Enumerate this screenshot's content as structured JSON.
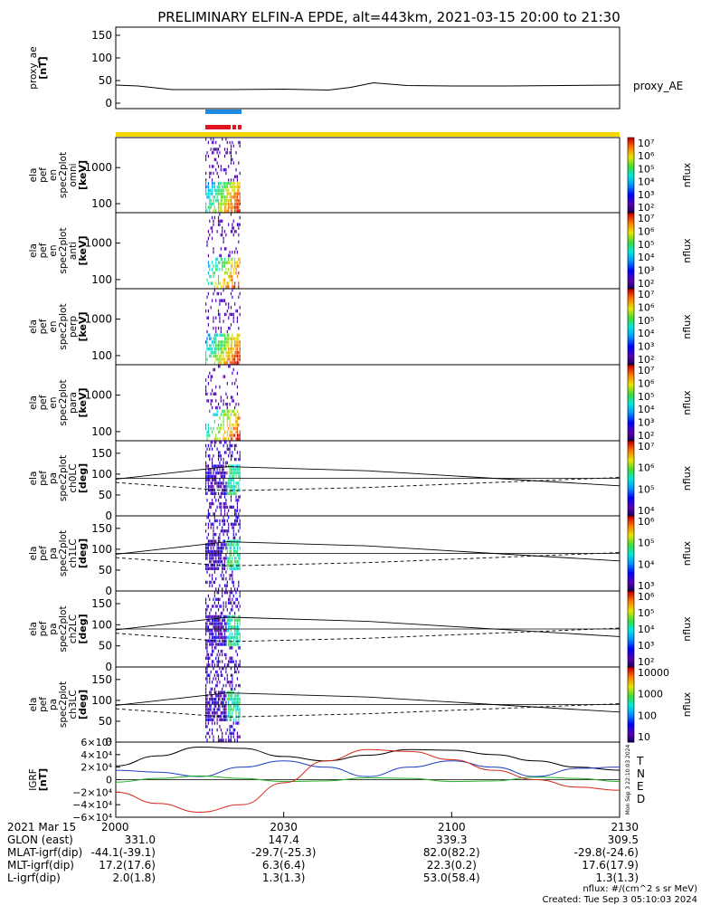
{
  "title": "PRELIMINARY ELFIN-A EPDE, alt=443km, 2021-03-15 20:00 to 21:30",
  "colors": {
    "bar_blue": "#1e88e5",
    "bar_red": "#e0141e",
    "bar_yellow": "#f5d800",
    "series_T": "#000000",
    "series_N": "#1f3fbf",
    "series_E": "#22b022",
    "series_D": "#d42a1a"
  },
  "chart_data": [
    {
      "type": "line",
      "panel": "proxy_ae",
      "ylabel": [
        "proxy_ae",
        "[nT]"
      ],
      "yticks": [
        "150",
        "100",
        "50",
        "0"
      ],
      "ylim": [
        0,
        160
      ],
      "legend": "proxy_AE",
      "x": [
        0,
        4,
        10,
        20,
        30,
        38,
        42,
        46,
        52,
        60,
        70,
        80,
        90
      ],
      "values": [
        40,
        38,
        30,
        30,
        31,
        29,
        35,
        45,
        39,
        38,
        38,
        39,
        40
      ]
    },
    {
      "type": "heatmap",
      "panel": "omni",
      "ylabel": [
        "ela",
        "pef",
        "en",
        "spec2plot",
        "omni",
        "[keV]"
      ],
      "yticks": [
        "1000",
        "100"
      ],
      "zlabel": "nflux",
      "zticks": [
        "10⁷",
        "10⁶",
        "10⁵",
        "10⁴",
        "10³",
        "10²"
      ]
    },
    {
      "type": "heatmap",
      "panel": "anti",
      "ylabel": [
        "ela",
        "pef",
        "en",
        "spec2plot",
        "anti",
        "[keV]"
      ],
      "yticks": [
        "1000",
        "100"
      ],
      "zlabel": "nflux",
      "zticks": [
        "10⁷",
        "10⁶",
        "10⁵",
        "10⁴",
        "10³",
        "10²"
      ]
    },
    {
      "type": "heatmap",
      "panel": "perp",
      "ylabel": [
        "ela",
        "pef",
        "en",
        "spec2plot",
        "perp",
        "[keV]"
      ],
      "yticks": [
        "1000",
        "100"
      ],
      "zlabel": "nflux",
      "zticks": [
        "10⁷",
        "10⁶",
        "10⁵",
        "10⁴",
        "10³",
        "10²"
      ]
    },
    {
      "type": "heatmap",
      "panel": "para",
      "ylabel": [
        "ela",
        "pef",
        "en",
        "spec2plot",
        "para",
        "[keV]"
      ],
      "yticks": [
        "1000",
        "100"
      ],
      "zlabel": "nflux",
      "zticks": [
        "10⁷",
        "10⁶",
        "10⁵",
        "10⁴",
        "10³",
        "10²"
      ]
    },
    {
      "type": "heatmap",
      "panel": "ch0LC",
      "ylabel": [
        "ela",
        "pef",
        "pa",
        "spec2plot",
        "ch0LC",
        "[deg]"
      ],
      "yticks": [
        "150",
        "100",
        "50",
        "0"
      ],
      "zlabel": "nflux",
      "zticks": [
        "10⁷",
        "10⁶",
        "10⁵",
        "10⁴"
      ]
    },
    {
      "type": "heatmap",
      "panel": "ch1LC",
      "ylabel": [
        "ela",
        "pef",
        "pa",
        "spec2plot",
        "ch1LC",
        "[deg]"
      ],
      "yticks": [
        "150",
        "100",
        "50",
        "0"
      ],
      "zlabel": "nflux",
      "zticks": [
        "10⁶",
        "10⁵",
        "10⁴",
        "10³"
      ]
    },
    {
      "type": "heatmap",
      "panel": "ch2LC",
      "ylabel": [
        "ela",
        "pef",
        "pa",
        "spec2plot",
        "ch2LC",
        "[deg]"
      ],
      "yticks": [
        "150",
        "100",
        "50",
        "0"
      ],
      "zlabel": "nflux",
      "zticks": [
        "10⁶",
        "10⁵",
        "10⁴",
        "10³",
        "10²"
      ]
    },
    {
      "type": "heatmap",
      "panel": "ch3LC",
      "ylabel": [
        "ela",
        "pef",
        "pa",
        "spec2plot",
        "ch3LC",
        "[deg]"
      ],
      "yticks": [
        "150",
        "100",
        "50",
        "0"
      ],
      "zlabel": "nflux",
      "zticks": [
        "10000",
        "1000",
        "100",
        "10"
      ]
    },
    {
      "type": "line",
      "panel": "IGRF",
      "ylabel": [
        "IGRF",
        "[nT]"
      ],
      "yticks": [
        "6×10⁴",
        "4×10⁴",
        "2×10⁴",
        "0",
        "−2×10⁴",
        "−4×10⁴",
        "−6×10⁴"
      ],
      "ylim": [
        -60000,
        60000
      ],
      "legend": [
        "T",
        "N",
        "E",
        "D"
      ],
      "side_note": "Mon Sep  3 22:10:03 2024",
      "x": [
        0,
        7.5,
        15,
        22.5,
        30,
        37.5,
        45,
        52.5,
        60,
        67.5,
        75,
        82.5,
        90
      ],
      "series": [
        {
          "name": "T",
          "values": [
            22000,
            38000,
            52000,
            50000,
            37000,
            30000,
            39000,
            48000,
            47000,
            40000,
            30000,
            20000,
            15000
          ]
        },
        {
          "name": "N",
          "values": [
            15000,
            12000,
            5000,
            20000,
            30000,
            20000,
            5000,
            20000,
            30000,
            20000,
            5000,
            18000,
            20000
          ]
        },
        {
          "name": "E",
          "values": [
            -4000,
            2000,
            6000,
            2000,
            -3000,
            -2000,
            3000,
            2000,
            -3000,
            -2000,
            4000,
            2000,
            -3000
          ]
        },
        {
          "name": "D",
          "values": [
            -20000,
            -38000,
            -52000,
            -40000,
            -5000,
            30000,
            48000,
            45000,
            32000,
            15000,
            0,
            -12000,
            -17000
          ]
        }
      ]
    }
  ],
  "xaxis": {
    "date": "2021 Mar 15",
    "ticks": [
      "2000",
      "2030",
      "2100",
      "2130"
    ],
    "rows": [
      {
        "label": "GLON (east)",
        "values": [
          "331.0",
          "147.4",
          "339.3",
          "309.5"
        ]
      },
      {
        "label": "MLAT-igrf(dip)",
        "values": [
          "-44.1(-39.1)",
          "-29.7(-25.3)",
          "82.0(82.2)",
          "-29.8(-24.6)"
        ]
      },
      {
        "label": "MLT-igrf(dip)",
        "values": [
          "17.2(17.6)",
          "6.3(6.4)",
          "22.3(0.2)",
          "17.6(17.9)"
        ]
      },
      {
        "label": "L-igrf(dip)",
        "values": [
          "2.0(1.8)",
          "1.3(1.3)",
          "53.0(58.4)",
          "1.3(1.3)"
        ]
      }
    ]
  },
  "footer": {
    "units": "nflux: #/(cm^2 s sr MeV)",
    "created": "Created: Tue Sep  3 05:10:03 2024"
  }
}
